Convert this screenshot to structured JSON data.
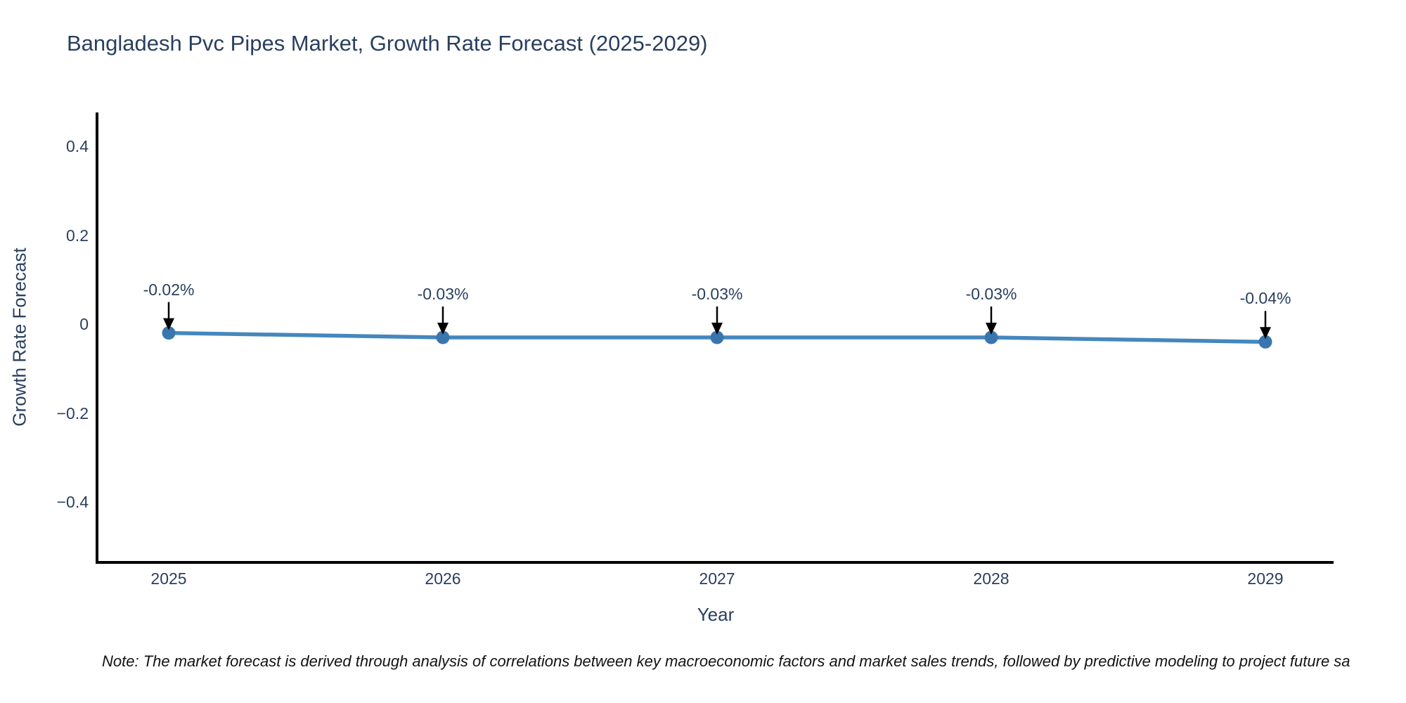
{
  "colors": {
    "text": "#2a3f5f",
    "axis": "#000000",
    "line": "#4587bd",
    "marker": "#3a76ae",
    "arrow": "#000000",
    "note_text": "#131313",
    "background": "#ffffff"
  },
  "footer": {
    "note": "Note: The market forecast is derived through analysis of correlations between key macroeconomic factors and market sales trends, followed by predictive modeling to project future sa"
  },
  "chart_data": {
    "type": "line",
    "title": "Bangladesh Pvc Pipes Market, Growth Rate Forecast (2025-2029)",
    "xlabel": "Year",
    "ylabel": "Growth Rate Forecast",
    "x": [
      2025,
      2026,
      2027,
      2028,
      2029
    ],
    "xtick_labels": [
      "2025",
      "2026",
      "2027",
      "2028",
      "2029"
    ],
    "values": [
      -0.02,
      -0.03,
      -0.03,
      -0.03,
      -0.04
    ],
    "point_labels": [
      "-0.02%",
      "-0.03%",
      "-0.03%",
      "-0.03%",
      "-0.04%"
    ],
    "yticks": [
      {
        "value": 0.4,
        "label": "0.4"
      },
      {
        "value": 0.2,
        "label": "0.2"
      },
      {
        "value": 0,
        "label": "0"
      },
      {
        "value": -0.2,
        "label": "−0.2"
      },
      {
        "value": -0.4,
        "label": "−0.4"
      }
    ],
    "ylim": [
      -0.51,
      0.48
    ],
    "xlim": [
      2024.74,
      2029.25
    ],
    "grid": false,
    "legend": "none",
    "marker_style": "circle",
    "annotations_have_arrows": true
  }
}
